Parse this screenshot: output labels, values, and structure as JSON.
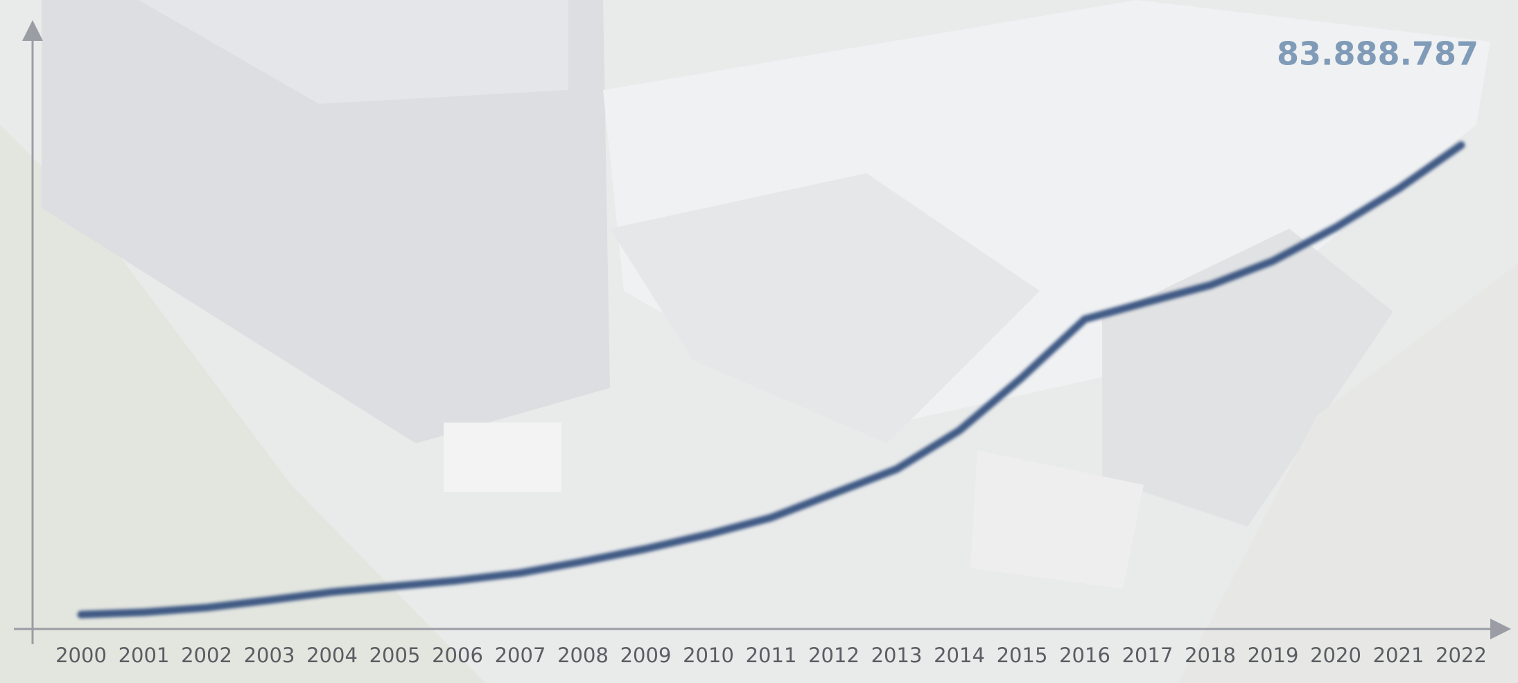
{
  "chart_data": {
    "type": "line",
    "categories": [
      "2000",
      "2001",
      "2002",
      "2003",
      "2004",
      "2005",
      "2006",
      "2007",
      "2008",
      "2009",
      "2010",
      "2011",
      "2012",
      "2013",
      "2014",
      "2015",
      "2016",
      "2017",
      "2018",
      "2019",
      "2020",
      "2021",
      "2022"
    ],
    "series": [
      {
        "color": "#2f4c7a",
        "values": [
          2500000,
          2900000,
          3700000,
          5000000,
          6400000,
          7400000,
          8400000,
          9700000,
          11700000,
          13900000,
          16400000,
          19300000,
          23500000,
          27700000,
          34400000,
          43600000,
          53700000,
          56700000,
          59600000,
          63800000,
          69600000,
          76300000,
          83888787
        ],
        "value_labels": [
          null,
          null,
          null,
          null,
          null,
          null,
          null,
          null,
          null,
          null,
          null,
          null,
          null,
          null,
          null,
          null,
          null,
          null,
          null,
          null,
          null,
          null,
          "83.888.787"
        ]
      }
    ],
    "ylim": [
      0,
      104000000
    ]
  }
}
